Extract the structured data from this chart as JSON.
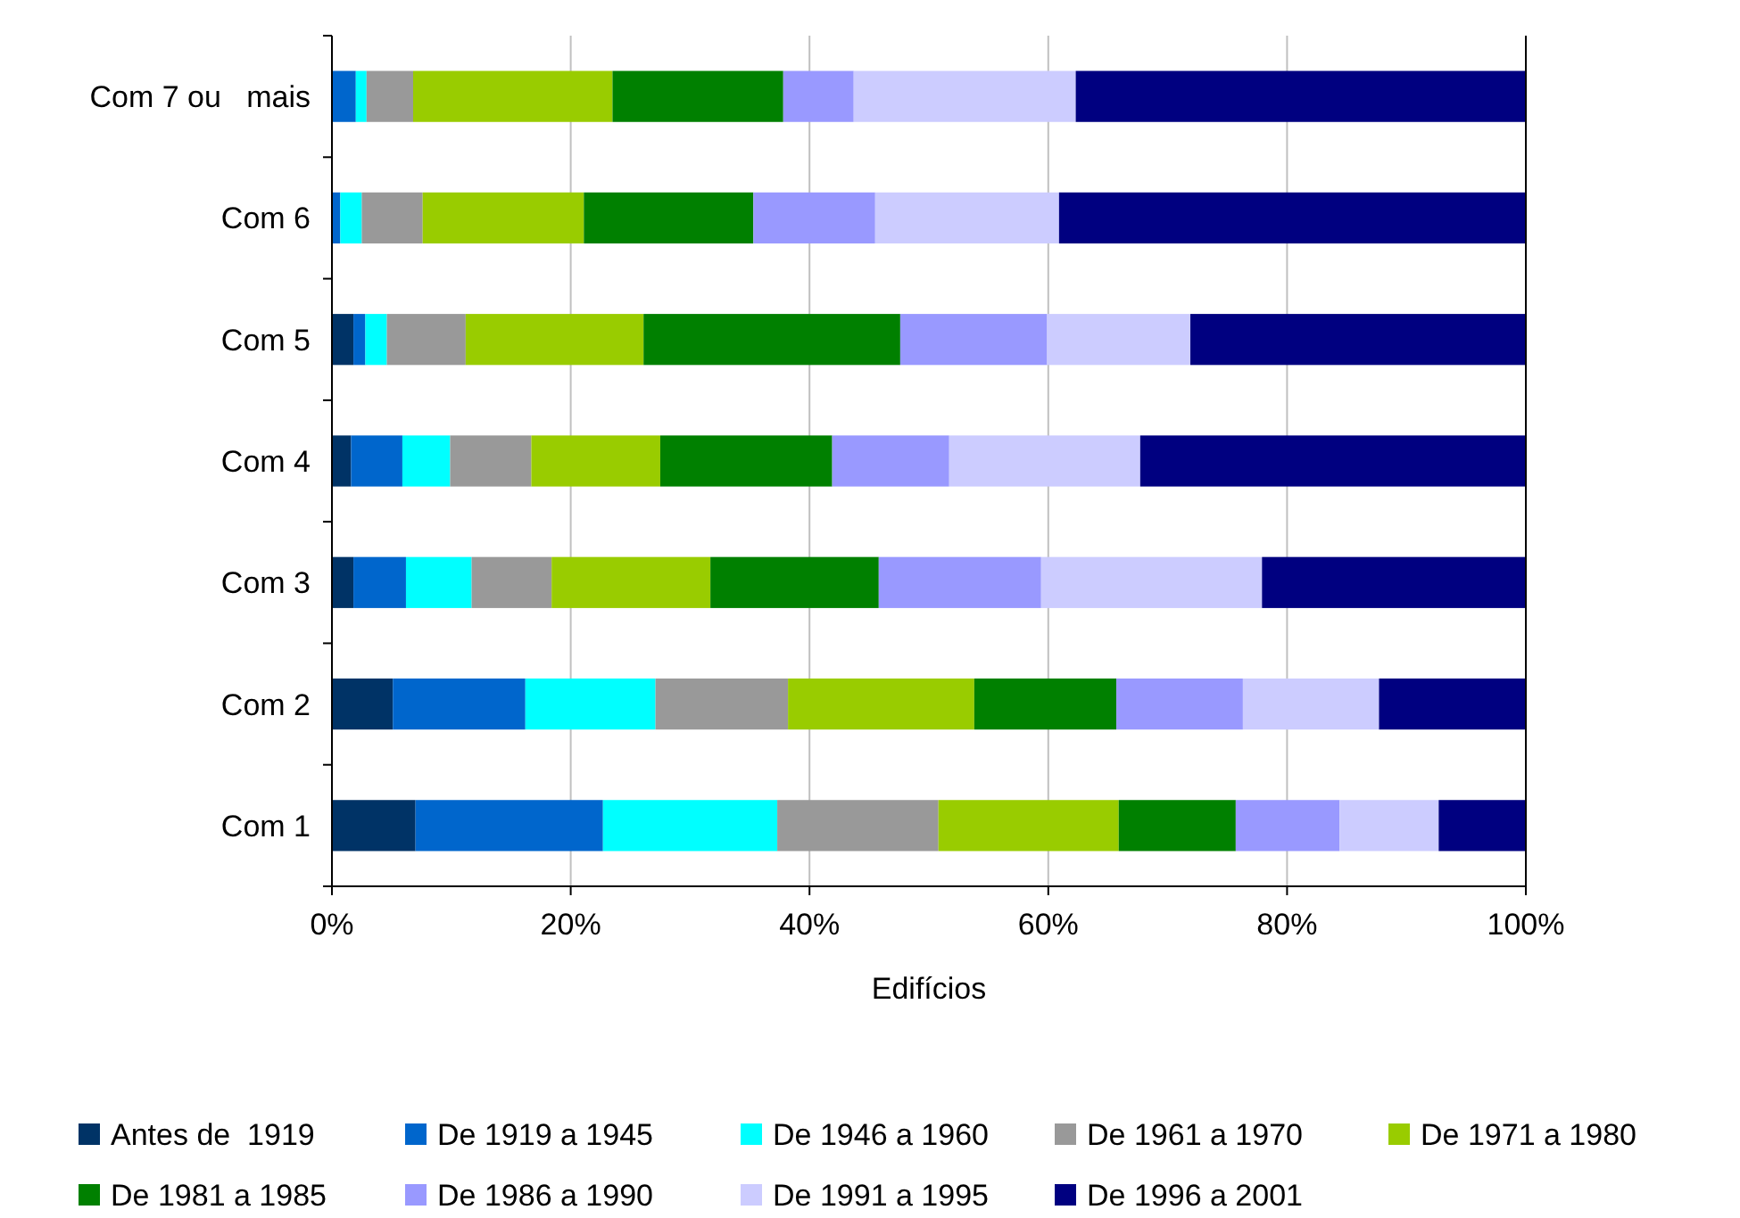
{
  "chart_data": {
    "type": "bar",
    "orientation": "horizontal",
    "stacked": true,
    "xlabel": "Edifícios",
    "categories": [
      "Com 7 ou   mais",
      "Com 6",
      "Com 5",
      "Com 4",
      "Com 3",
      "Com 2",
      "Com 1"
    ],
    "xlim": [
      0,
      100
    ],
    "xticks": [
      {
        "value": 0,
        "label": "0%"
      },
      {
        "value": 20,
        "label": "20%"
      },
      {
        "value": 40,
        "label": "40%"
      },
      {
        "value": 60,
        "label": "60%"
      },
      {
        "value": 80,
        "label": "80%"
      },
      {
        "value": 100,
        "label": "100%"
      }
    ],
    "grid": "x",
    "legend": "bottom",
    "series": [
      {
        "name": "Antes de  1919",
        "color": "#003366",
        "values": [
          0,
          0,
          1.8,
          1.6,
          1.8,
          5.1,
          7.0
        ]
      },
      {
        "name": "De 1919 a 1945",
        "color": "#0066cc",
        "values": [
          2.0,
          0.7,
          1.0,
          4.3,
          4.4,
          11.1,
          15.7
        ]
      },
      {
        "name": "De 1946 a 1960",
        "color": "#00ffff",
        "values": [
          0.9,
          1.8,
          1.8,
          4.0,
          5.5,
          10.9,
          14.6
        ]
      },
      {
        "name": "De 1961 a 1970",
        "color": "#999999",
        "values": [
          3.9,
          5.1,
          6.6,
          6.8,
          6.7,
          11.1,
          13.5
        ]
      },
      {
        "name": "De 1971 a 1980",
        "color": "#99cc00",
        "values": [
          16.7,
          13.5,
          14.9,
          10.8,
          13.3,
          15.6,
          15.1
        ]
      },
      {
        "name": "De 1981 a 1985",
        "color": "#008000",
        "values": [
          14.3,
          14.2,
          21.5,
          14.4,
          14.1,
          11.9,
          9.8
        ]
      },
      {
        "name": "De 1986 a 1990",
        "color": "#9999ff",
        "values": [
          5.9,
          10.2,
          12.3,
          9.8,
          13.6,
          10.6,
          8.7
        ]
      },
      {
        "name": "De 1991 a 1995",
        "color": "#ccccff",
        "values": [
          18.6,
          15.4,
          12.0,
          16.0,
          18.5,
          11.4,
          8.3
        ]
      },
      {
        "name": "De 1996 a 2001",
        "color": "#000080",
        "values": [
          37.7,
          39.1,
          28.1,
          32.3,
          22.1,
          12.3,
          7.3
        ]
      }
    ]
  }
}
